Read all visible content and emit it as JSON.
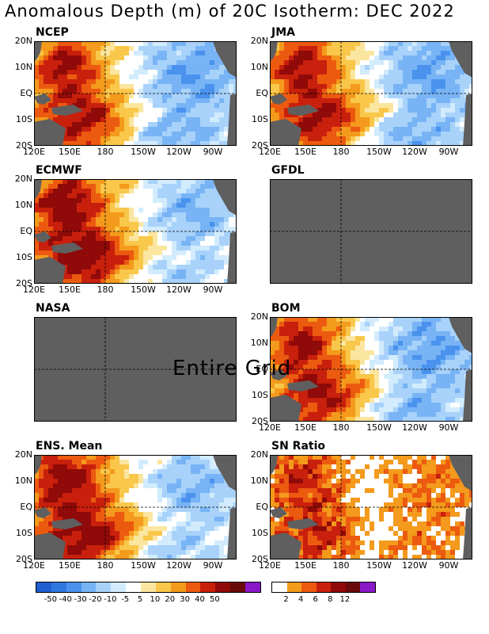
{
  "title": "Anomalous Depth (m) of 20C Isotherm: DEC 2022",
  "lat_labels": [
    "20N",
    "10N",
    "EQ",
    "10S",
    "20S"
  ],
  "lon_labels": [
    "120E",
    "150E",
    "180",
    "150W",
    "120W",
    "90W"
  ],
  "panels": [
    {
      "name": "NCEP",
      "has_data": true,
      "kind": "anomaly"
    },
    {
      "name": "JMA",
      "has_data": true,
      "kind": "anomaly"
    },
    {
      "name": "ECMWF",
      "has_data": true,
      "kind": "anomaly"
    },
    {
      "name": "GFDL",
      "has_data": false,
      "kind": "missing"
    },
    {
      "name": "NASA",
      "has_data": false,
      "kind": "missing"
    },
    {
      "name": "BOM",
      "has_data": true,
      "kind": "anomaly"
    },
    {
      "name": "ENS. Mean",
      "has_data": true,
      "kind": "anomaly"
    },
    {
      "name": "SN Ratio",
      "has_data": true,
      "kind": "ratio"
    }
  ],
  "overlay_text": "Entire Grid",
  "colorbar_anomaly": {
    "colors": [
      "#1f5fcf",
      "#2f78e0",
      "#4a92ee",
      "#78b4f5",
      "#a8d2fa",
      "#d2ecfd",
      "#ffffff",
      "#fbe6a0",
      "#f9c74a",
      "#f49a1c",
      "#ec5a10",
      "#c8200c",
      "#8f0a08",
      "#6a0a0a",
      "#8a18c8"
    ],
    "labels": [
      "-50",
      "-40",
      "-30",
      "-20",
      "-10",
      "-5",
      "5",
      "10",
      "20",
      "30",
      "40",
      "50"
    ]
  },
  "colorbar_ratio": {
    "colors": [
      "#ffffff",
      "#f49a1c",
      "#ec5a10",
      "#c8200c",
      "#8f0a08",
      "#6a0a0a",
      "#8a18c8"
    ],
    "labels": [
      "2",
      "4",
      "6",
      "8",
      "12"
    ]
  },
  "chart_data": {
    "type": "heatmap",
    "title": "Anomalous Depth (m) of 20C Isotherm: DEC 2022",
    "variable": "20C isotherm depth anomaly (m)",
    "lon_range": [
      "120E",
      "80W"
    ],
    "lat_range": [
      "20S",
      "20N"
    ],
    "models": [
      "NCEP",
      "JMA",
      "ECMWF",
      "GFDL",
      "NASA",
      "BOM",
      "ENS. Mean",
      "SN Ratio"
    ],
    "missing_models": [
      "GFDL",
      "NASA"
    ],
    "anomaly_levels": [
      -50,
      -40,
      -30,
      -20,
      -10,
      -5,
      5,
      10,
      20,
      30,
      40,
      50
    ],
    "sn_ratio_levels": [
      2,
      4,
      6,
      8,
      12
    ],
    "pattern": "positive anomalies (up to >50 m) in western/central Pacific, negative anomalies (to about -30 m) in eastern Pacific"
  }
}
